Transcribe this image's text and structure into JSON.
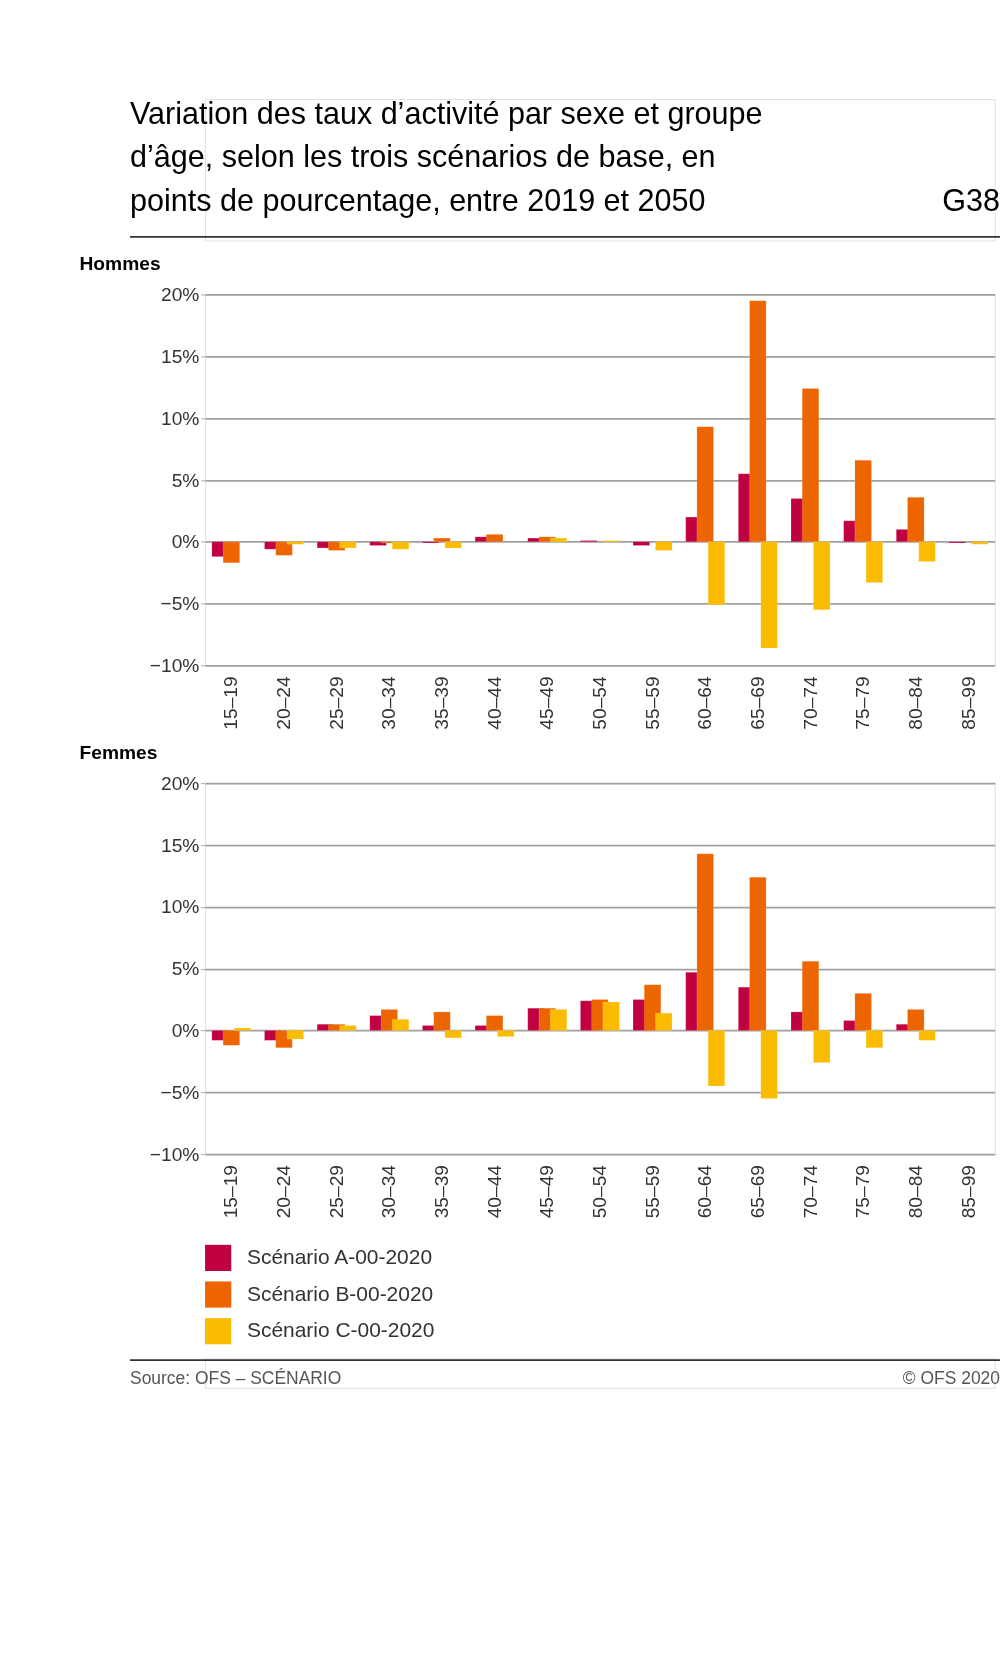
{
  "chart_data": [
    {
      "type": "bar",
      "title": "Variation des taux d’activité par sexe et groupe d’âge, selon les trois scénarios de base, en points de pourcentage, entre 2019 et 2050",
      "subtitle": "Hommes",
      "annotations": [
        "G38"
      ],
      "categories": [
        "15–19",
        "20–24",
        "25–29",
        "30–34",
        "35–39",
        "40–44",
        "45–49",
        "50–54",
        "55–59",
        "60–64",
        "65–69",
        "70–74",
        "75–79",
        "80–84",
        "85–99"
      ],
      "series": [
        {
          "color": "#c0003f",
          "values": [
            -1.2,
            -0.6,
            -0.5,
            -0.3,
            -0.1,
            0.4,
            0.3,
            0.1,
            -0.3,
            2.0,
            5.5,
            3.5,
            1.7,
            1.0,
            -0.1
          ]
        },
        {
          "color": "#ec6500",
          "values": [
            -1.7,
            -1.1,
            -0.7,
            -0.1,
            0.3,
            0.6,
            0.4,
            null,
            null,
            9.3,
            19.5,
            12.4,
            6.6,
            3.6,
            null
          ]
        },
        {
          "color": "#fbbb00",
          "values": [
            null,
            -0.2,
            -0.5,
            -0.6,
            -0.5,
            null,
            0.3,
            0.1,
            -0.7,
            -5.1,
            -8.6,
            -5.5,
            -3.3,
            -1.6,
            -0.2
          ]
        }
      ],
      "ylim": [
        -10,
        20
      ],
      "yticks": [
        {
          "value": -10,
          "label": "−10%"
        },
        {
          "value": -5,
          "label": "−5%"
        },
        {
          "value": 0,
          "label": "0%"
        },
        {
          "value": 5,
          "label": "5%"
        },
        {
          "value": 10,
          "label": "10%"
        },
        {
          "value": 15,
          "label": "15%"
        },
        {
          "value": 20,
          "label": "20%"
        }
      ],
      "grid": "y",
      "legend": false
    },
    {
      "type": "bar",
      "title": "Femmes",
      "annotations": [
        "Source: OFS – SCÉNARIO",
        "© OFS 2020"
      ],
      "categories": [
        "15–19",
        "20–24",
        "25–29",
        "30–34",
        "35–39",
        "40–44",
        "45–49",
        "50–54",
        "55–59",
        "60–64",
        "65–69",
        "70–74",
        "75–79",
        "80–84",
        "85–99"
      ],
      "series": [
        {
          "name": "Scénario A-00-2020",
          "color": "#c0003f",
          "values": [
            -0.8,
            -0.8,
            0.5,
            1.2,
            0.4,
            0.4,
            1.8,
            2.4,
            2.5,
            4.7,
            3.5,
            1.5,
            0.8,
            0.5,
            null
          ]
        },
        {
          "name": "Scénario B-00-2020",
          "color": "#ec6500",
          "values": [
            -1.2,
            -1.4,
            0.5,
            1.7,
            1.5,
            1.2,
            1.8,
            2.5,
            3.7,
            14.3,
            12.4,
            5.6,
            3.0,
            1.7,
            null
          ]
        },
        {
          "name": "Scénario C-00-2020",
          "color": "#fbbb00",
          "values": [
            0.2,
            -0.7,
            0.4,
            0.9,
            -0.6,
            -0.5,
            1.7,
            2.3,
            1.4,
            -4.5,
            -5.5,
            -2.6,
            -1.4,
            -0.8,
            null
          ]
        }
      ],
      "ylim": [
        -10,
        20
      ],
      "yticks": [
        {
          "value": -10,
          "label": "−10%"
        },
        {
          "value": -5,
          "label": "−5%"
        },
        {
          "value": 0,
          "label": "0%"
        },
        {
          "value": 5,
          "label": "5%"
        },
        {
          "value": 10,
          "label": "10%"
        },
        {
          "value": 15,
          "label": "15%"
        },
        {
          "value": 20,
          "label": "20%"
        }
      ],
      "grid": "y",
      "legend": "bottom"
    }
  ]
}
